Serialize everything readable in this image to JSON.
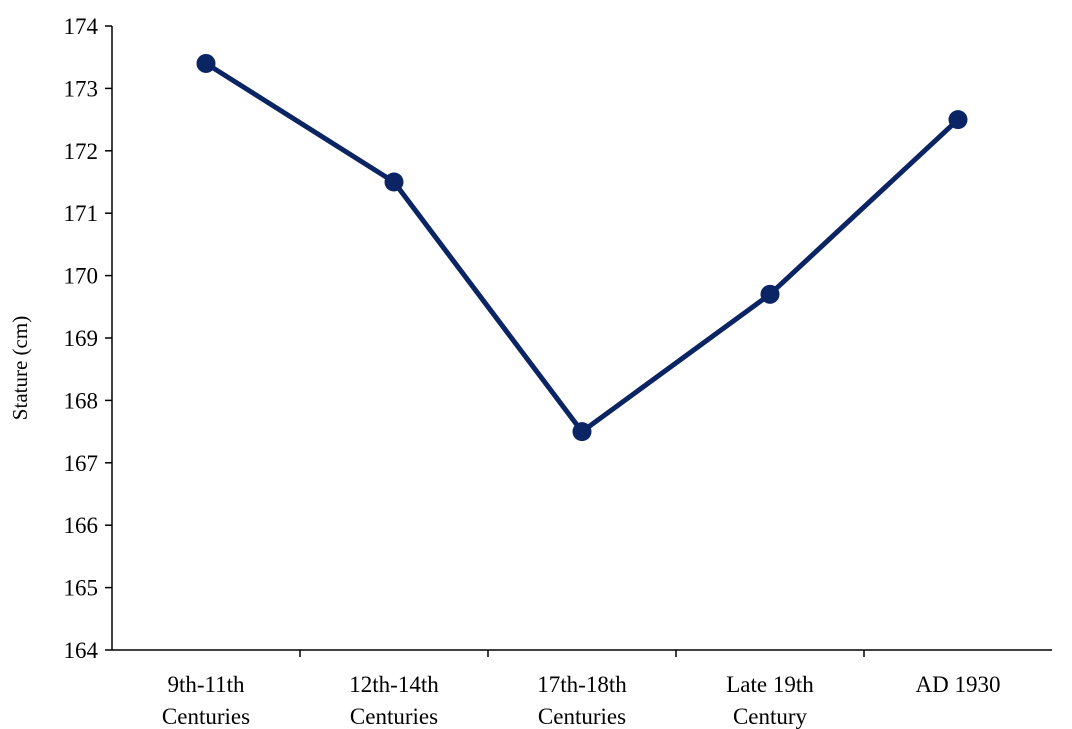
{
  "chart_data": {
    "type": "line",
    "title": "",
    "xlabel": "",
    "ylabel": "Stature (cm)",
    "ylim": [
      164,
      174
    ],
    "yticks": [
      164,
      165,
      166,
      167,
      168,
      169,
      170,
      171,
      172,
      173,
      174
    ],
    "categories": [
      [
        "9th-11th",
        "Centuries"
      ],
      [
        "12th-14th",
        "Centuries"
      ],
      [
        "17th-18th",
        "Centuries"
      ],
      [
        "Late 19th",
        "Century"
      ],
      [
        "AD 1930"
      ]
    ],
    "series": [
      {
        "values": [
          173.4,
          171.5,
          167.5,
          169.7,
          172.5
        ],
        "color": "#0b2463"
      }
    ],
    "grid": false,
    "legend": "none"
  }
}
